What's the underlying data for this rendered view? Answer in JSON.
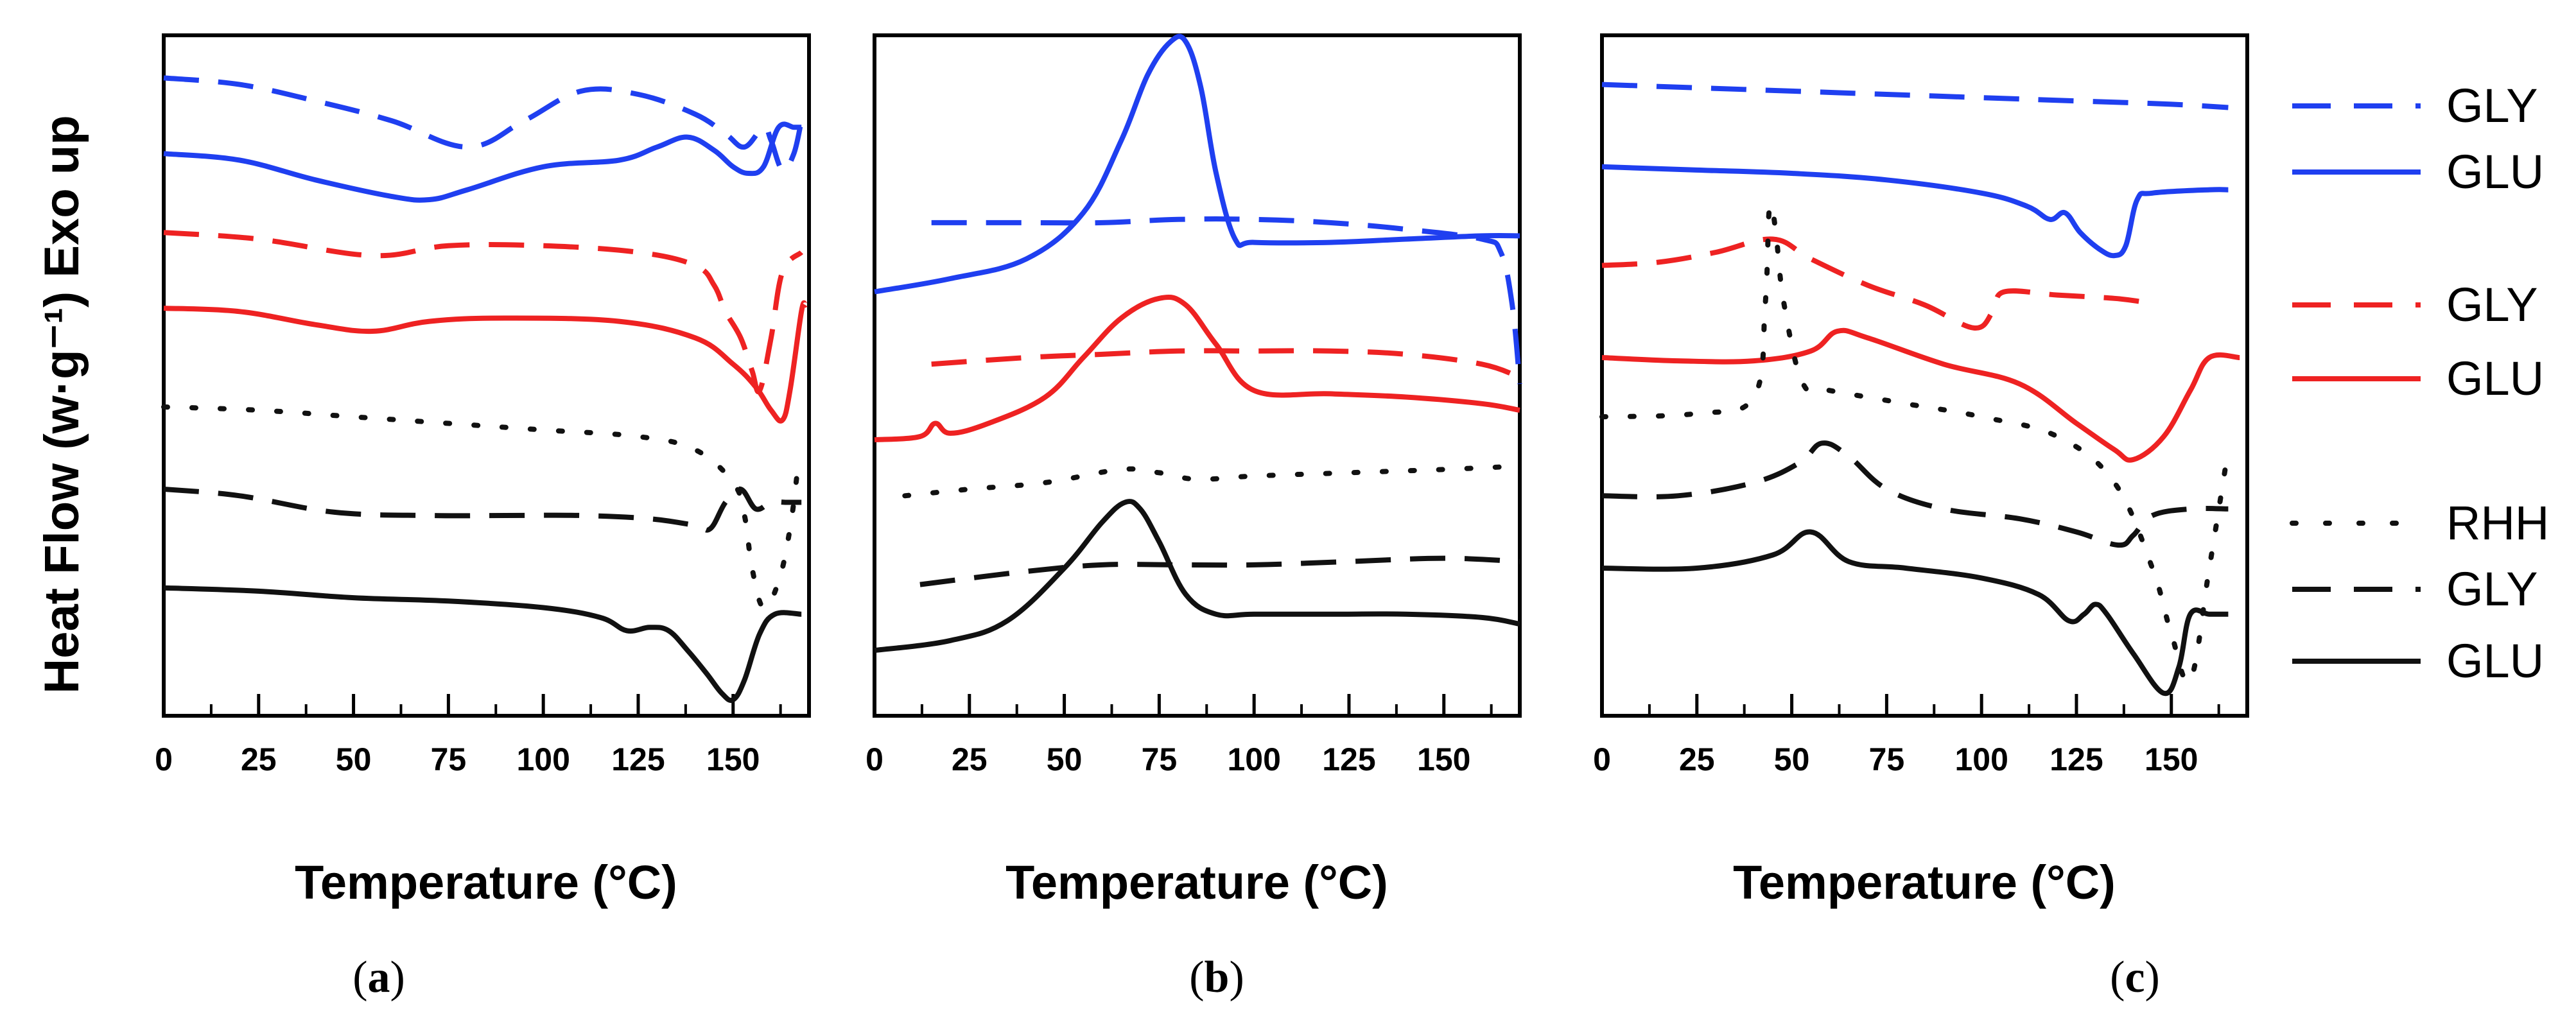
{
  "figure": {
    "ylabel": "Heat Flow (w·g⁻¹) Exo up"
  },
  "legend": {
    "entries": [
      {
        "label": "GLY",
        "color": "#1f3ff0",
        "style": "dashed"
      },
      {
        "label": "GLU",
        "color": "#1f3ff0",
        "style": "solid"
      },
      {
        "label": "GLY",
        "color": "#ee2222",
        "style": "dashed"
      },
      {
        "label": "GLU",
        "color": "#ee2222",
        "style": "solid"
      },
      {
        "label": "RHH",
        "color": "#111111",
        "style": "dotted"
      },
      {
        "label": "GLY",
        "color": "#111111",
        "style": "dashed"
      },
      {
        "label": "GLU",
        "color": "#111111",
        "style": "solid"
      }
    ]
  },
  "chart_data": [
    {
      "type": "line",
      "caption": "a",
      "xlabel": "Temperature (°C)",
      "xlim": [
        0,
        170
      ],
      "ylim": [
        0,
        100
      ],
      "xticks": [
        0,
        25,
        50,
        75,
        100,
        125,
        150
      ],
      "series": [
        {
          "name": "GLY",
          "color": "#1f3ff0",
          "style": "dashed",
          "x": [
            0,
            20,
            40,
            60,
            80,
            95,
            110,
            125,
            140,
            148,
            153,
            158,
            160,
            163,
            166,
            168
          ],
          "y": [
            94.5,
            93.5,
            91,
            88,
            84,
            88,
            92.5,
            92,
            89,
            86,
            84,
            87,
            85,
            80.5,
            83,
            88
          ]
        },
        {
          "name": "GLU",
          "color": "#1f3ff0",
          "style": "solid",
          "x": [
            0,
            20,
            40,
            60,
            70,
            80,
            100,
            120,
            130,
            138,
            145,
            150,
            154,
            158,
            162,
            166,
            168
          ],
          "y": [
            83,
            82,
            79,
            76.5,
            76,
            77.5,
            81,
            82,
            84,
            85.5,
            83.5,
            81,
            80,
            81,
            87,
            87,
            87
          ]
        },
        {
          "name": "GLY",
          "color": "#ee2222",
          "style": "dashed",
          "x": [
            0,
            25,
            55,
            75,
            100,
            125,
            140,
            145,
            148,
            152,
            155,
            157,
            160,
            163,
            168
          ],
          "y": [
            71,
            70,
            67.5,
            69,
            69,
            68,
            66,
            63,
            59,
            55,
            50,
            47,
            55,
            65,
            68
          ]
        },
        {
          "name": "GLU",
          "color": "#ee2222",
          "style": "solid",
          "x": [
            0,
            20,
            40,
            55,
            70,
            90,
            120,
            140,
            150,
            156,
            160,
            163,
            165,
            168,
            169
          ],
          "y": [
            59.5,
            59,
            57,
            56,
            57.5,
            58,
            57.5,
            55,
            51,
            47.5,
            44,
            42.5,
            47,
            59,
            60
          ]
        },
        {
          "name": "RHH",
          "color": "#111111",
          "style": "dotted",
          "x": [
            0,
            25,
            50,
            75,
            100,
            125,
            140,
            150,
            153,
            155,
            158,
            162,
            165,
            167
          ],
          "y": [
            44.5,
            44,
            43,
            42,
            41,
            40,
            38,
            33,
            28,
            20,
            14,
            18,
            26,
            35
          ]
        },
        {
          "name": "GLY",
          "color": "#111111",
          "style": "dashed",
          "x": [
            0,
            20,
            45,
            70,
            90,
            110,
            128,
            140,
            144,
            148,
            152,
            156,
            160,
            164,
            168
          ],
          "y": [
            32,
            31,
            28.5,
            28,
            28,
            28,
            27.5,
            26.5,
            26,
            30,
            32,
            29,
            30,
            30,
            30
          ]
        },
        {
          "name": "GLU",
          "color": "#111111",
          "style": "solid",
          "x": [
            0,
            25,
            50,
            75,
            100,
            115,
            122,
            128,
            133,
            138,
            143,
            147,
            150,
            153,
            157,
            161,
            168
          ],
          "y": [
            17,
            16.5,
            15.5,
            15,
            14,
            12.5,
            10.5,
            11,
            10.5,
            7.5,
            4,
            1,
            0,
            3,
            10,
            13,
            13
          ]
        }
      ]
    },
    {
      "type": "line",
      "caption": "b",
      "xlabel": "Temperature (°C)",
      "xlim": [
        0,
        170
      ],
      "ylim": [
        0,
        100
      ],
      "xticks": [
        0,
        25,
        50,
        75,
        100,
        125,
        150
      ],
      "series": [
        {
          "name": "GLY",
          "color": "#1f3ff0",
          "style": "dashed",
          "x": [
            15,
            40,
            60,
            80,
            100,
            120,
            140,
            160,
            165,
            168,
            170
          ],
          "y": [
            72.5,
            72.5,
            72.5,
            73,
            73,
            72.5,
            71.5,
            70,
            68,
            60,
            48
          ]
        },
        {
          "name": "GLU",
          "color": "#1f3ff0",
          "style": "solid",
          "x": [
            0,
            20,
            40,
            55,
            65,
            72,
            78,
            82,
            86,
            90,
            95,
            100,
            120,
            140,
            160,
            170
          ],
          "y": [
            62,
            64,
            67,
            74,
            85,
            95,
            100,
            100,
            93,
            80,
            70,
            69.5,
            69.5,
            70,
            70.5,
            70.5
          ]
        },
        {
          "name": "GLY",
          "color": "#ee2222",
          "style": "dashed",
          "x": [
            15,
            40,
            60,
            80,
            100,
            120,
            140,
            160,
            170
          ],
          "y": [
            51,
            52,
            52.5,
            53,
            53,
            53,
            52.5,
            51,
            49
          ]
        },
        {
          "name": "GLU",
          "color": "#ee2222",
          "style": "solid",
          "x": [
            0,
            12,
            16,
            20,
            30,
            45,
            55,
            65,
            75,
            82,
            90,
            100,
            120,
            140,
            160,
            170
          ],
          "y": [
            39.5,
            40,
            42,
            40.5,
            42,
            46,
            52,
            58,
            61,
            60,
            54,
            47,
            46.5,
            46,
            45,
            44
          ]
        },
        {
          "name": "RHH",
          "color": "#111111",
          "style": "dotted",
          "x": [
            8,
            25,
            45,
            65,
            75,
            85,
            100,
            125,
            150,
            170
          ],
          "y": [
            31,
            32,
            33,
            35,
            34.5,
            33.5,
            34,
            34.5,
            35,
            35.5
          ]
        },
        {
          "name": "GLY",
          "color": "#111111",
          "style": "dashed",
          "x": [
            12,
            40,
            60,
            80,
            100,
            125,
            150,
            170
          ],
          "y": [
            17.5,
            19.5,
            20.5,
            20.5,
            20.5,
            21,
            21.5,
            21
          ]
        },
        {
          "name": "GLU",
          "color": "#111111",
          "style": "solid",
          "x": [
            0,
            20,
            35,
            50,
            60,
            66,
            70,
            75,
            82,
            90,
            100,
            120,
            140,
            160,
            170
          ],
          "y": [
            7.5,
            9,
            12,
            20,
            27,
            30,
            29,
            24,
            16,
            13,
            13,
            13,
            13,
            12.5,
            11.5
          ]
        }
      ]
    },
    {
      "type": "line",
      "caption": "c",
      "xlabel": "Temperature (°C)",
      "xlim": [
        0,
        170
      ],
      "ylim": [
        0,
        100
      ],
      "xticks": [
        0,
        25,
        50,
        75,
        100,
        125,
        150
      ],
      "series": [
        {
          "name": "GLY",
          "color": "#1f3ff0",
          "style": "dashed",
          "x": [
            0,
            25,
            50,
            75,
            100,
            125,
            150,
            165
          ],
          "y": [
            93.5,
            93,
            92.5,
            92,
            91.5,
            91,
            90.5,
            90
          ]
        },
        {
          "name": "GLU",
          "color": "#1f3ff0",
          "style": "solid",
          "x": [
            0,
            25,
            50,
            75,
            100,
            112,
            118,
            122,
            126,
            131,
            135,
            138,
            141,
            145,
            160,
            165
          ],
          "y": [
            81,
            80.5,
            80,
            79,
            77,
            75,
            73,
            74,
            71,
            68.5,
            67.5,
            69,
            76,
            77,
            77.5,
            77.5
          ]
        },
        {
          "name": "GLY",
          "color": "#ee2222",
          "style": "dashed",
          "x": [
            0,
            15,
            30,
            45,
            55,
            70,
            85,
            98,
            103,
            106,
            120,
            135,
            142
          ],
          "y": [
            66,
            66.5,
            68,
            70,
            67,
            63,
            60,
            56.5,
            59,
            62,
            61.5,
            61,
            60.5
          ]
        },
        {
          "name": "GLU",
          "color": "#ee2222",
          "style": "solid",
          "x": [
            0,
            20,
            40,
            55,
            62,
            70,
            90,
            110,
            125,
            135,
            140,
            148,
            155,
            160,
            168
          ],
          "y": [
            52,
            51.5,
            51.5,
            53,
            56,
            55,
            51,
            48,
            42,
            38,
            36.5,
            40,
            47,
            52,
            52
          ]
        },
        {
          "name": "RHH",
          "color": "#111111",
          "style": "dotted",
          "x": [
            0,
            25,
            40,
            43,
            44,
            45,
            46,
            48,
            53,
            60,
            80,
            100,
            120,
            135,
            145,
            150,
            155,
            160,
            165
          ],
          "y": [
            43,
            43.5,
            46,
            60,
            74,
            74,
            70,
            60,
            48,
            47,
            45,
            43,
            40,
            33,
            20,
            10,
            3,
            20,
            38
          ]
        },
        {
          "name": "GLY",
          "color": "#111111",
          "style": "dashed",
          "x": [
            0,
            20,
            40,
            52,
            58,
            65,
            75,
            90,
            110,
            125,
            136,
            140,
            145,
            155,
            165
          ],
          "y": [
            31,
            31,
            33,
            36,
            39,
            37,
            32,
            29,
            27.5,
            25.5,
            23.5,
            25,
            28,
            29,
            29
          ]
        },
        {
          "name": "GLU",
          "color": "#111111",
          "style": "solid",
          "x": [
            0,
            25,
            45,
            55,
            65,
            80,
            100,
            115,
            123,
            127,
            130,
            133,
            140,
            148,
            152,
            155,
            160,
            165
          ],
          "y": [
            20,
            20,
            22,
            25.5,
            21,
            20,
            18.5,
            16,
            12,
            13,
            14.5,
            13,
            7,
            1,
            5,
            13,
            13,
            13
          ]
        }
      ]
    }
  ],
  "captions": [
    {
      "open": "(",
      "letter": "a",
      "close": ")"
    },
    {
      "open": "(",
      "letter": "b",
      "close": ")"
    },
    {
      "open": "(",
      "letter": "c",
      "close": ")"
    }
  ]
}
